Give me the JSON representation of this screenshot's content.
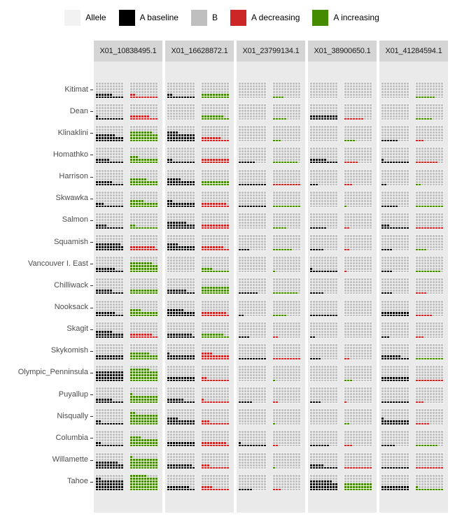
{
  "legend": {
    "items": [
      {
        "label": "Allele",
        "color": "#f2f2f2"
      },
      {
        "label": "A baseline",
        "color": "#000000"
      },
      {
        "label": "B",
        "color": "#bfbfbf"
      },
      {
        "label": "A decreasing",
        "color": "#cd2626"
      },
      {
        "label": "A increasing",
        "color": "#458b00"
      }
    ]
  },
  "colors": {
    "baseline": "#000000",
    "b_allele": "#c2c2c2",
    "decreasing": "#cd2626",
    "increasing": "#458b00",
    "grid_backing": "#f3f3f3",
    "panel_bg": "#eaeaea",
    "strip_bg": "#d5d5d5"
  },
  "chart_data": {
    "type": "waffle_grid",
    "description": "Faceted allele-frequency waffle plot: one facet column per locus, one row per population; each row shows a 10x6 waffle of A-baseline (black) vs B (gray) and a 10x6 waffle of changed A frequency (red = A decreasing, green = A increasing). Counts are filled cells out of 60.",
    "grid": {
      "cols": 10,
      "rows": 6,
      "total_cells": 60
    },
    "loci": [
      "X01_10838495.1",
      "X01_16628872.1",
      "X01_23799134.1",
      "X01_38900650.1",
      "X01_41284594.1"
    ],
    "populations": [
      "Kitimat",
      "Dean",
      "Klinaklini",
      "Homathko",
      "Harrison",
      "Skwawka",
      "Salmon",
      "Squamish",
      "Vancouver I. East",
      "Chilliwack",
      "Nooksack",
      "Skagit",
      "Skykomish",
      "Olympic_Penninsula",
      "Puyallup",
      "Nisqually",
      "Columbia",
      "Willamette",
      "Tahoe"
    ],
    "baseline_counts": [
      [
        16,
        11,
        27,
        15,
        16,
        13,
        14,
        29,
        17,
        16,
        17,
        26,
        20,
        40,
        16,
        12,
        12,
        28,
        42
      ],
      [
        12,
        0,
        34,
        12,
        25,
        22,
        27,
        24,
        0,
        17,
        26,
        19,
        21,
        20,
        16,
        24,
        20,
        19,
        18
      ],
      [
        0,
        0,
        0,
        6,
        10,
        10,
        0,
        4,
        0,
        7,
        2,
        4,
        10,
        0,
        5,
        0,
        11,
        0,
        5
      ],
      [
        0,
        20,
        0,
        16,
        3,
        0,
        6,
        5,
        11,
        5,
        10,
        2,
        4,
        0,
        4,
        0,
        7,
        15,
        38
      ],
      [
        0,
        0,
        6,
        11,
        2,
        6,
        13,
        4,
        4,
        4,
        20,
        3,
        17,
        20,
        10,
        21,
        5,
        10,
        20
      ]
    ],
    "change_counts": [
      [
        12,
        17,
        38,
        23,
        26,
        25,
        12,
        19,
        38,
        20,
        24,
        18,
        27,
        47,
        31,
        42,
        34,
        41,
        56
      ],
      [
        20,
        18,
        17,
        20,
        20,
        19,
        20,
        18,
        14,
        30,
        19,
        18,
        24,
        12,
        11,
        13,
        19,
        13,
        14
      ],
      [
        4,
        5,
        3,
        9,
        10,
        10,
        5,
        7,
        1,
        9,
        5,
        2,
        10,
        1,
        2,
        1,
        2,
        1,
        3
      ],
      [
        0,
        7,
        4,
        5,
        3,
        1,
        2,
        2,
        1,
        0,
        0,
        0,
        2,
        3,
        1,
        2,
        3,
        10,
        30
      ],
      [
        7,
        6,
        3,
        8,
        2,
        10,
        10,
        4,
        9,
        4,
        6,
        3,
        10,
        10,
        3,
        5,
        8,
        10,
        11
      ]
    ],
    "direction": [
      [
        "dec",
        "dec",
        "inc",
        "inc",
        "inc",
        "inc",
        "inc",
        "dec",
        "inc",
        "inc",
        "inc",
        "dec",
        "inc",
        "inc",
        "inc",
        "inc",
        "inc",
        "inc",
        "inc"
      ],
      [
        "inc",
        "inc",
        "dec",
        "dec",
        "inc",
        "dec",
        "dec",
        "dec",
        "inc",
        "inc",
        "dec",
        "inc",
        "dec",
        "dec",
        "dec",
        "dec",
        "dec",
        "dec",
        "dec"
      ],
      [
        "inc",
        "inc",
        "inc",
        "inc",
        "dec",
        "inc",
        "inc",
        "inc",
        "inc",
        "inc",
        "inc",
        "dec",
        "dec",
        "inc",
        "dec",
        "inc",
        "dec",
        "inc",
        "dec"
      ],
      [
        "inc",
        "dec",
        "inc",
        "dec",
        "dec",
        "inc",
        "dec",
        "dec",
        "dec",
        "inc",
        "inc",
        "inc",
        "dec",
        "inc",
        "dec",
        "inc",
        "dec",
        "dec",
        "inc"
      ],
      [
        "inc",
        "inc",
        "dec",
        "dec",
        "inc",
        "inc",
        "dec",
        "inc",
        "inc",
        "dec",
        "dec",
        "dec",
        "inc",
        "dec",
        "dec",
        "dec",
        "inc",
        "dec",
        "inc"
      ]
    ],
    "legend_position": "top",
    "grid_on": false
  }
}
